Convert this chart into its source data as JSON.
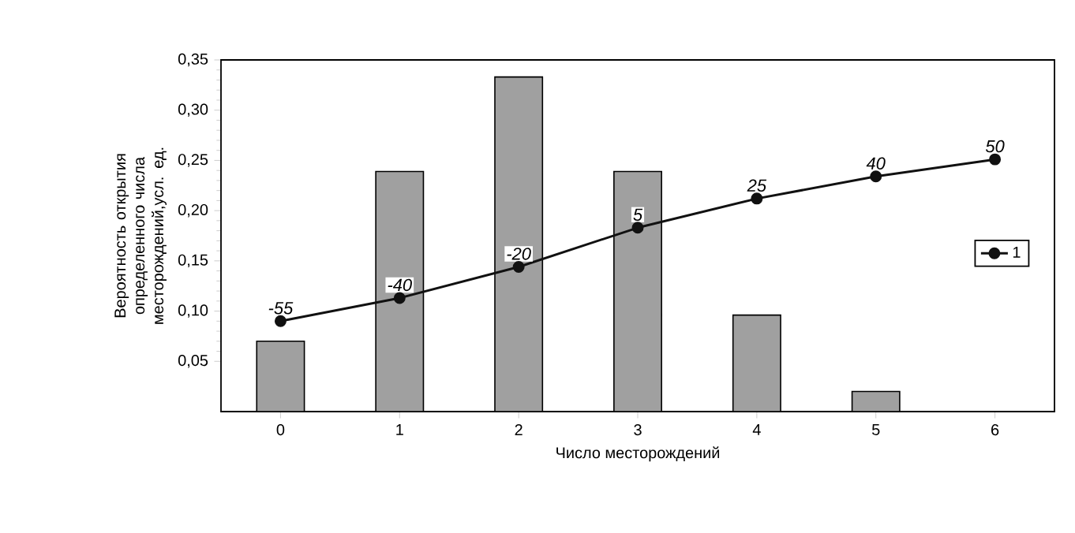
{
  "chart_data": {
    "type": "bar",
    "xlabel": "Число  месторождений",
    "ylabel": "Вероятность открытия определенного числа месторождений,усл. ед.",
    "categories": [
      "0",
      "1",
      "2",
      "3",
      "4",
      "5",
      "6"
    ],
    "series": [
      {
        "color": "#a0a0a0",
        "values": [
          0.07,
          0.239,
          0.333,
          0.239,
          0.096,
          0.02,
          null
        ]
      },
      {
        "type": "line",
        "name": "1",
        "color": "#111111",
        "values": [
          0.09,
          0.113,
          0.144,
          0.183,
          0.212,
          0.234,
          0.251
        ]
      }
    ],
    "annotations": [
      {
        "text": "-55",
        "x": "0",
        "y": 0.09
      },
      {
        "text": "-40",
        "x": "1",
        "y": 0.113
      },
      {
        "text": "-20",
        "x": "2",
        "y": 0.144
      },
      {
        "text": "5",
        "x": "3",
        "y": 0.183
      },
      {
        "text": "25",
        "x": "4",
        "y": 0.212
      },
      {
        "text": "40",
        "x": "5",
        "y": 0.234
      },
      {
        "text": "50",
        "x": "6",
        "y": 0.251
      }
    ],
    "ylim": [
      0,
      0.35
    ],
    "yticks": [
      {
        "value": 0.05,
        "label": "0,05"
      },
      {
        "value": 0.1,
        "label": "0,10"
      },
      {
        "value": 0.15,
        "label": "0,15"
      },
      {
        "value": 0.2,
        "label": "0,20"
      },
      {
        "value": 0.25,
        "label": "0,25"
      },
      {
        "value": 0.3,
        "label": "0,30"
      },
      {
        "value": 0.35,
        "label": "0,35"
      }
    ],
    "legend": "right",
    "marker": "circle",
    "grid": false
  }
}
